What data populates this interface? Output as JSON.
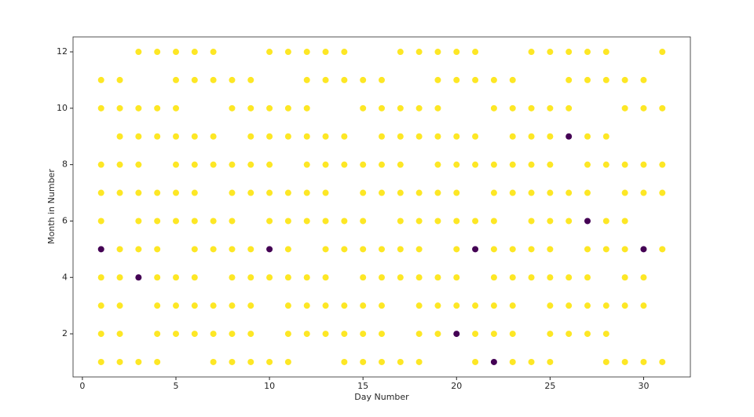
{
  "chart_data": {
    "type": "scatter",
    "x_label": "Day Number",
    "y_label": "Month in Number",
    "xlim": [
      -0.5,
      32.5
    ],
    "xticks": [
      0,
      5,
      10,
      15,
      20,
      25,
      30
    ],
    "ylim": [
      0.47,
      12.53
    ],
    "yticks": [
      2,
      4,
      6,
      8,
      10,
      12
    ],
    "series": [
      {
        "color": "#fde725",
        "x": [
          3,
          4,
          5,
          6,
          7,
          10,
          11,
          12,
          13,
          14,
          17,
          18,
          19,
          20,
          21,
          24,
          25,
          26,
          27,
          28,
          31,
          1,
          2,
          5,
          6,
          7,
          8,
          9,
          12,
          13,
          14,
          15,
          16,
          19,
          20,
          21,
          22,
          23,
          26,
          27,
          28,
          29,
          30,
          1,
          2,
          3,
          4,
          5,
          8,
          9,
          10,
          11,
          12,
          15,
          16,
          17,
          18,
          19,
          22,
          23,
          24,
          25,
          26,
          29,
          30,
          31,
          2,
          3,
          4,
          5,
          6,
          7,
          9,
          10,
          11,
          12,
          13,
          14,
          16,
          17,
          18,
          19,
          20,
          21,
          23,
          24,
          25,
          27,
          28,
          1,
          2,
          3,
          5,
          6,
          7,
          8,
          9,
          10,
          12,
          13,
          14,
          15,
          16,
          17,
          19,
          20,
          21,
          22,
          23,
          24,
          25,
          27,
          28,
          29,
          30,
          31,
          1,
          2,
          3,
          4,
          5,
          6,
          8,
          9,
          10,
          11,
          12,
          13,
          15,
          16,
          17,
          18,
          19,
          20,
          22,
          23,
          24,
          25,
          26,
          27,
          29,
          30,
          31,
          1,
          3,
          4,
          5,
          6,
          7,
          8,
          10,
          11,
          12,
          13,
          14,
          15,
          17,
          18,
          19,
          20,
          21,
          22,
          24,
          25,
          26,
          28,
          29,
          2,
          3,
          4,
          6,
          7,
          8,
          9,
          11,
          13,
          14,
          15,
          16,
          17,
          18,
          20,
          22,
          23,
          24,
          25,
          27,
          28,
          29,
          31,
          1,
          2,
          4,
          5,
          6,
          8,
          9,
          10,
          11,
          12,
          13,
          15,
          16,
          17,
          18,
          19,
          20,
          22,
          23,
          24,
          25,
          26,
          27,
          29,
          30,
          1,
          2,
          4,
          5,
          6,
          7,
          8,
          9,
          11,
          12,
          13,
          14,
          15,
          16,
          18,
          19,
          20,
          21,
          22,
          23,
          25,
          26,
          27,
          28,
          29,
          30,
          1,
          2,
          4,
          5,
          6,
          7,
          8,
          9,
          11,
          12,
          13,
          14,
          15,
          16,
          18,
          19,
          21,
          22,
          23,
          25,
          26,
          27,
          28,
          1,
          2,
          3,
          4,
          7,
          8,
          9,
          10,
          11,
          14,
          15,
          16,
          17,
          18,
          21,
          23,
          24,
          25,
          28,
          29,
          30,
          31
        ],
        "values": [
          12,
          12,
          12,
          12,
          12,
          12,
          12,
          12,
          12,
          12,
          12,
          12,
          12,
          12,
          12,
          12,
          12,
          12,
          12,
          12,
          12,
          11,
          11,
          11,
          11,
          11,
          11,
          11,
          11,
          11,
          11,
          11,
          11,
          11,
          11,
          11,
          11,
          11,
          11,
          11,
          11,
          11,
          11,
          10,
          10,
          10,
          10,
          10,
          10,
          10,
          10,
          10,
          10,
          10,
          10,
          10,
          10,
          10,
          10,
          10,
          10,
          10,
          10,
          10,
          10,
          10,
          9,
          9,
          9,
          9,
          9,
          9,
          9,
          9,
          9,
          9,
          9,
          9,
          9,
          9,
          9,
          9,
          9,
          9,
          9,
          9,
          9,
          9,
          9,
          8,
          8,
          8,
          8,
          8,
          8,
          8,
          8,
          8,
          8,
          8,
          8,
          8,
          8,
          8,
          8,
          8,
          8,
          8,
          8,
          8,
          8,
          8,
          8,
          8,
          8,
          8,
          7,
          7,
          7,
          7,
          7,
          7,
          7,
          7,
          7,
          7,
          7,
          7,
          7,
          7,
          7,
          7,
          7,
          7,
          7,
          7,
          7,
          7,
          7,
          7,
          7,
          7,
          7,
          6,
          6,
          6,
          6,
          6,
          6,
          6,
          6,
          6,
          6,
          6,
          6,
          6,
          6,
          6,
          6,
          6,
          6,
          6,
          6,
          6,
          6,
          6,
          6,
          5,
          5,
          5,
          5,
          5,
          5,
          5,
          5,
          5,
          5,
          5,
          5,
          5,
          5,
          5,
          5,
          5,
          5,
          5,
          5,
          5,
          5,
          5,
          4,
          4,
          4,
          4,
          4,
          4,
          4,
          4,
          4,
          4,
          4,
          4,
          4,
          4,
          4,
          4,
          4,
          4,
          4,
          4,
          4,
          4,
          4,
          4,
          4,
          3,
          3,
          3,
          3,
          3,
          3,
          3,
          3,
          3,
          3,
          3,
          3,
          3,
          3,
          3,
          3,
          3,
          3,
          3,
          3,
          3,
          3,
          3,
          3,
          3,
          3,
          2,
          2,
          2,
          2,
          2,
          2,
          2,
          2,
          2,
          2,
          2,
          2,
          2,
          2,
          2,
          2,
          2,
          2,
          2,
          2,
          2,
          2,
          2,
          1,
          1,
          1,
          1,
          1,
          1,
          1,
          1,
          1,
          1,
          1,
          1,
          1,
          1,
          1,
          1,
          1,
          1,
          1,
          1,
          1,
          1
        ]
      },
      {
        "color": "#440154",
        "x": [
          26,
          27,
          1,
          10,
          21,
          30,
          3,
          20,
          22
        ],
        "values": [
          9,
          6,
          5,
          5,
          5,
          5,
          4,
          2,
          1
        ]
      }
    ]
  }
}
